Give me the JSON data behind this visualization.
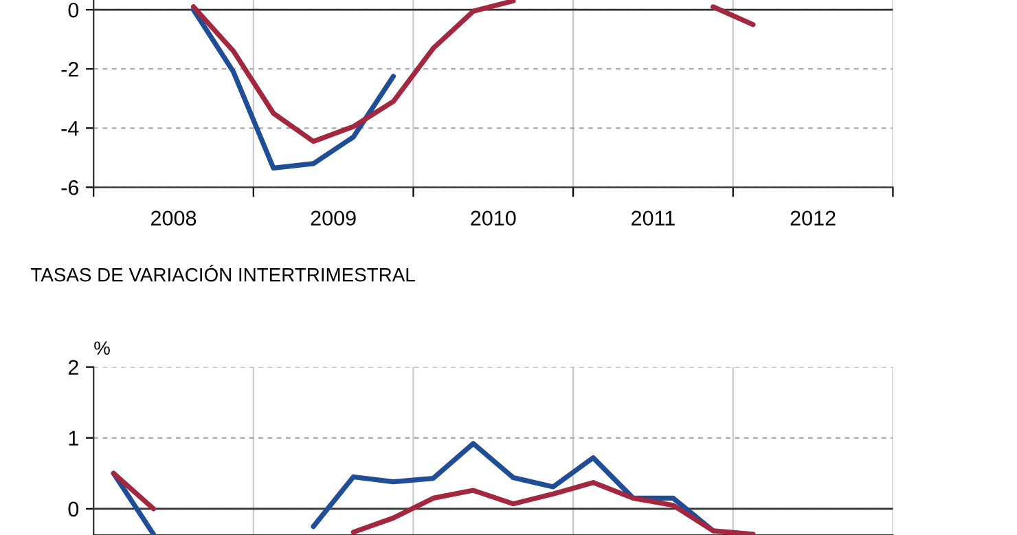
{
  "chart_data": [
    {
      "type": "line",
      "x": [
        2008.625,
        2008.875,
        2009.125,
        2009.375,
        2009.625,
        2009.875,
        2010.125,
        2010.375,
        2010.625,
        2010.875,
        2011.125,
        2011.375,
        2011.625,
        2011.875,
        2012.125
      ],
      "series": [
        {
          "color": "#1f4e96",
          "values": [
            0.0,
            -2.1,
            -5.35,
            -5.2,
            -4.3,
            -2.25,
            null,
            null,
            null,
            null,
            null,
            null,
            null,
            null,
            null
          ]
        },
        {
          "color": "#a3283f",
          "values": [
            0.1,
            -1.4,
            -3.5,
            -4.45,
            -3.95,
            -3.1,
            -1.3,
            -0.05,
            0.3,
            null,
            null,
            null,
            null,
            0.1,
            -0.5
          ]
        }
      ],
      "xlim": [
        2008,
        2013
      ],
      "ylim": [
        -6,
        0.33
      ],
      "yticks": [
        -6,
        -4,
        -2,
        0
      ],
      "xticks": [
        {
          "value": 2008,
          "label": null
        },
        {
          "value": 2008.5,
          "label": "2008"
        },
        {
          "value": 2009,
          "label": null
        },
        {
          "value": 2009.5,
          "label": "2009"
        },
        {
          "value": 2010,
          "label": null
        },
        {
          "value": 2010.5,
          "label": "2010"
        },
        {
          "value": 2011,
          "label": null
        },
        {
          "value": 2011.5,
          "label": "2011"
        },
        {
          "value": 2012,
          "label": null
        },
        {
          "value": 2012.5,
          "label": "2012"
        },
        {
          "value": 2013,
          "label": null
        }
      ],
      "grid": true,
      "marker": "none",
      "line_style": "solid",
      "legend": false,
      "ref_lines": [
        {
          "axis": "y",
          "value": 0,
          "color": "#333333"
        }
      ]
    },
    {
      "type": "line",
      "title": "TASAS DE VARIACIÓN INTERTRIMESTRAL",
      "ylabel": "%",
      "x": [
        2008.125,
        2008.375,
        2008.625,
        2008.875,
        2009.125,
        2009.375,
        2009.625,
        2009.875,
        2010.125,
        2010.375,
        2010.625,
        2010.875,
        2011.125,
        2011.375,
        2011.625,
        2011.875,
        2012.125
      ],
      "series": [
        {
          "color": "#1f4e96",
          "values": [
            0.5,
            -0.36,
            null,
            null,
            null,
            -0.25,
            0.45,
            0.38,
            0.43,
            0.92,
            0.44,
            0.31,
            0.72,
            0.15,
            0.15,
            -0.31,
            null
          ]
        },
        {
          "color": "#a3283f",
          "values": [
            0.5,
            0.0,
            null,
            null,
            null,
            null,
            -0.33,
            -0.13,
            0.15,
            0.26,
            0.07,
            0.21,
            0.37,
            0.15,
            0.05,
            -0.31,
            -0.36
          ]
        }
      ],
      "xlim": [
        2008,
        2013
      ],
      "ylim": [
        -0.37,
        2
      ],
      "yticks": [
        0,
        1,
        2
      ],
      "xticks": [
        {
          "value": 2008,
          "label": null
        },
        {
          "value": 2009,
          "label": null
        },
        {
          "value": 2010,
          "label": null
        },
        {
          "value": 2011,
          "label": null
        },
        {
          "value": 2012,
          "label": null
        },
        {
          "value": 2013,
          "label": null
        }
      ],
      "tick_labels": "y",
      "grid": true,
      "marker": "none",
      "line_style": "solid",
      "legend": false,
      "ref_lines": [
        {
          "axis": "y",
          "value": 0,
          "color": "#333333"
        }
      ]
    }
  ]
}
